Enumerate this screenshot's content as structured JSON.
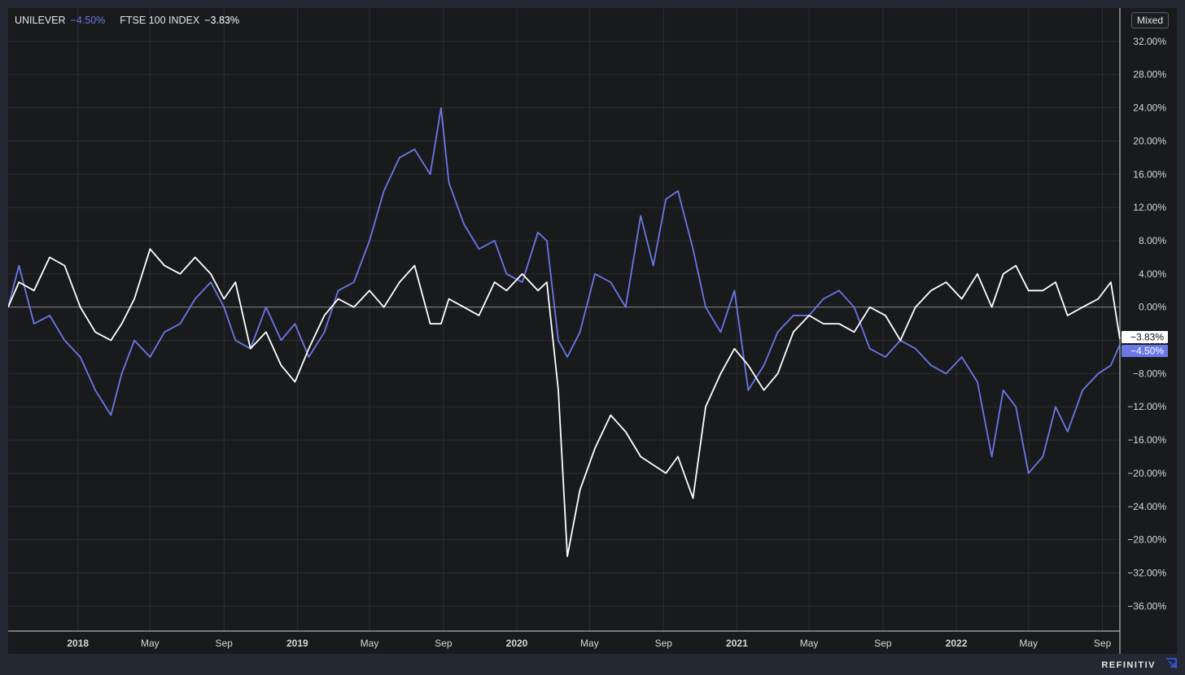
{
  "legend": {
    "series1_name": "UNILEVER",
    "series1_value": "−4.50%",
    "series2_name": "FTSE 100 INDEX",
    "series2_value": "−3.83%"
  },
  "controls": {
    "mixed_label": "Mixed"
  },
  "brand": {
    "name": "REFINITIV"
  },
  "colors": {
    "background": "#191a1c",
    "frame": "#232832",
    "grid": "#2c2e33",
    "zero_line": "#8a8c90",
    "unilever": "#6a78e6",
    "ftse": "#ffffff"
  },
  "chart_data": {
    "type": "line",
    "title": "",
    "xlabel": "",
    "ylabel": "",
    "ylim": [
      -39,
      36
    ],
    "y_ticks": [
      32,
      28,
      24,
      20,
      16,
      12,
      8,
      4,
      0,
      -4,
      -8,
      -12,
      -16,
      -20,
      -24,
      -28,
      -32,
      -36
    ],
    "y_tick_labels": [
      "32.00%",
      "28.00%",
      "24.00%",
      "20.00%",
      "16.00%",
      "12.00%",
      "8.00%",
      "4.00%",
      "0.00%",
      "−4.00%",
      "−8.00%",
      "−12.00%",
      "−16.00%",
      "−20.00%",
      "−24.00%",
      "−28.00%",
      "−32.00%",
      "−36.00%"
    ],
    "x_range": [
      "2017-09-07",
      "2022-09-30"
    ],
    "x_ticks": [
      {
        "date": "2018-01-01",
        "label": "2018",
        "bold": true
      },
      {
        "date": "2018-05-01",
        "label": "May",
        "bold": false
      },
      {
        "date": "2018-09-01",
        "label": "Sep",
        "bold": false
      },
      {
        "date": "2019-01-01",
        "label": "2019",
        "bold": true
      },
      {
        "date": "2019-05-01",
        "label": "May",
        "bold": false
      },
      {
        "date": "2019-09-01",
        "label": "Sep",
        "bold": false
      },
      {
        "date": "2020-01-01",
        "label": "2020",
        "bold": true
      },
      {
        "date": "2020-05-01",
        "label": "May",
        "bold": false
      },
      {
        "date": "2020-09-01",
        "label": "Sep",
        "bold": false
      },
      {
        "date": "2021-01-01",
        "label": "2021",
        "bold": true
      },
      {
        "date": "2021-05-01",
        "label": "May",
        "bold": false
      },
      {
        "date": "2021-09-01",
        "label": "Sep",
        "bold": false
      },
      {
        "date": "2022-01-01",
        "label": "2022",
        "bold": true
      },
      {
        "date": "2022-05-01",
        "label": "May",
        "bold": false
      },
      {
        "date": "2022-09-01",
        "label": "Sep",
        "bold": false
      }
    ],
    "grid": true,
    "legend_position": "top-left",
    "series": [
      {
        "name": "UNILEVER",
        "color": "#6a78e6",
        "last_label": "−4.50%",
        "x": [
          "2017-09-07",
          "2017-09-25",
          "2017-10-20",
          "2017-11-15",
          "2017-12-10",
          "2018-01-05",
          "2018-01-30",
          "2018-02-25",
          "2018-03-15",
          "2018-04-05",
          "2018-05-01",
          "2018-05-25",
          "2018-06-20",
          "2018-07-15",
          "2018-08-10",
          "2018-09-01",
          "2018-09-20",
          "2018-10-15",
          "2018-11-10",
          "2018-12-05",
          "2018-12-28",
          "2019-01-20",
          "2019-02-15",
          "2019-03-10",
          "2019-04-05",
          "2019-05-01",
          "2019-05-25",
          "2019-06-20",
          "2019-07-15",
          "2019-08-10",
          "2019-08-28",
          "2019-09-10",
          "2019-10-05",
          "2019-10-30",
          "2019-11-25",
          "2019-12-15",
          "2020-01-10",
          "2020-02-05",
          "2020-02-20",
          "2020-03-10",
          "2020-03-25",
          "2020-04-15",
          "2020-05-10",
          "2020-06-05",
          "2020-06-30",
          "2020-07-25",
          "2020-08-15",
          "2020-09-05",
          "2020-09-25",
          "2020-10-20",
          "2020-11-10",
          "2020-12-05",
          "2020-12-28",
          "2021-01-20",
          "2021-02-15",
          "2021-03-10",
          "2021-04-05",
          "2021-05-01",
          "2021-05-25",
          "2021-06-20",
          "2021-07-15",
          "2021-08-10",
          "2021-09-05",
          "2021-09-30",
          "2021-10-25",
          "2021-11-20",
          "2021-12-15",
          "2022-01-10",
          "2022-02-05",
          "2022-03-01",
          "2022-03-20",
          "2022-04-10",
          "2022-05-01",
          "2022-05-25",
          "2022-06-15",
          "2022-07-05",
          "2022-07-30",
          "2022-08-25",
          "2022-09-15",
          "2022-09-30"
        ],
        "values": [
          0,
          5,
          -2,
          -1,
          -4,
          -6,
          -10,
          -13,
          -8,
          -4,
          -6,
          -3,
          -2,
          1,
          3,
          0,
          -4,
          -5,
          0,
          -4,
          -2,
          -6,
          -3,
          2,
          3,
          8,
          14,
          18,
          19,
          16,
          24,
          15,
          10,
          7,
          8,
          4,
          3,
          9,
          8,
          -4,
          -6,
          -3,
          4,
          3,
          0,
          11,
          5,
          13,
          14,
          7,
          0,
          -3,
          2,
          -10,
          -7,
          -3,
          -1,
          -1,
          1,
          2,
          0,
          -5,
          -6,
          -4,
          -5,
          -7,
          -8,
          -6,
          -9,
          -18,
          -10,
          -12,
          -20,
          -18,
          -12,
          -15,
          -10,
          -8,
          -7,
          -4.5
        ]
      },
      {
        "name": "FTSE 100 INDEX",
        "color": "#ffffff",
        "last_label": "−3.83%",
        "x": [
          "2017-09-07",
          "2017-09-25",
          "2017-10-20",
          "2017-11-15",
          "2017-12-10",
          "2018-01-05",
          "2018-01-30",
          "2018-02-25",
          "2018-03-15",
          "2018-04-05",
          "2018-05-01",
          "2018-05-25",
          "2018-06-20",
          "2018-07-15",
          "2018-08-10",
          "2018-09-01",
          "2018-09-20",
          "2018-10-15",
          "2018-11-10",
          "2018-12-05",
          "2018-12-28",
          "2019-01-20",
          "2019-02-15",
          "2019-03-10",
          "2019-04-05",
          "2019-05-01",
          "2019-05-25",
          "2019-06-20",
          "2019-07-15",
          "2019-08-10",
          "2019-08-28",
          "2019-09-10",
          "2019-10-05",
          "2019-10-30",
          "2019-11-25",
          "2019-12-15",
          "2020-01-10",
          "2020-02-05",
          "2020-02-20",
          "2020-03-10",
          "2020-03-25",
          "2020-04-15",
          "2020-05-10",
          "2020-06-05",
          "2020-06-30",
          "2020-07-25",
          "2020-08-15",
          "2020-09-05",
          "2020-09-25",
          "2020-10-20",
          "2020-11-10",
          "2020-12-05",
          "2020-12-28",
          "2021-01-20",
          "2021-02-15",
          "2021-03-10",
          "2021-04-05",
          "2021-05-01",
          "2021-05-25",
          "2021-06-20",
          "2021-07-15",
          "2021-08-10",
          "2021-09-05",
          "2021-09-30",
          "2021-10-25",
          "2021-11-20",
          "2021-12-15",
          "2022-01-10",
          "2022-02-05",
          "2022-03-01",
          "2022-03-20",
          "2022-04-10",
          "2022-05-01",
          "2022-05-25",
          "2022-06-15",
          "2022-07-05",
          "2022-07-30",
          "2022-08-25",
          "2022-09-15",
          "2022-09-30"
        ],
        "values": [
          0,
          3,
          2,
          6,
          5,
          0,
          -3,
          -4,
          -2,
          1,
          7,
          5,
          4,
          6,
          4,
          1,
          3,
          -5,
          -3,
          -7,
          -9,
          -5,
          -1,
          1,
          0,
          2,
          0,
          3,
          5,
          -2,
          -2,
          1,
          0,
          -1,
          3,
          2,
          4,
          2,
          3,
          -10,
          -30,
          -22,
          -17,
          -13,
          -15,
          -18,
          -19,
          -20,
          -18,
          -23,
          -12,
          -8,
          -5,
          -7,
          -10,
          -8,
          -3,
          -1,
          -2,
          -2,
          -3,
          0,
          -1,
          -4,
          0,
          2,
          3,
          1,
          4,
          0,
          4,
          5,
          2,
          2,
          3,
          -1,
          0,
          1,
          3,
          -3.83
        ]
      }
    ]
  }
}
